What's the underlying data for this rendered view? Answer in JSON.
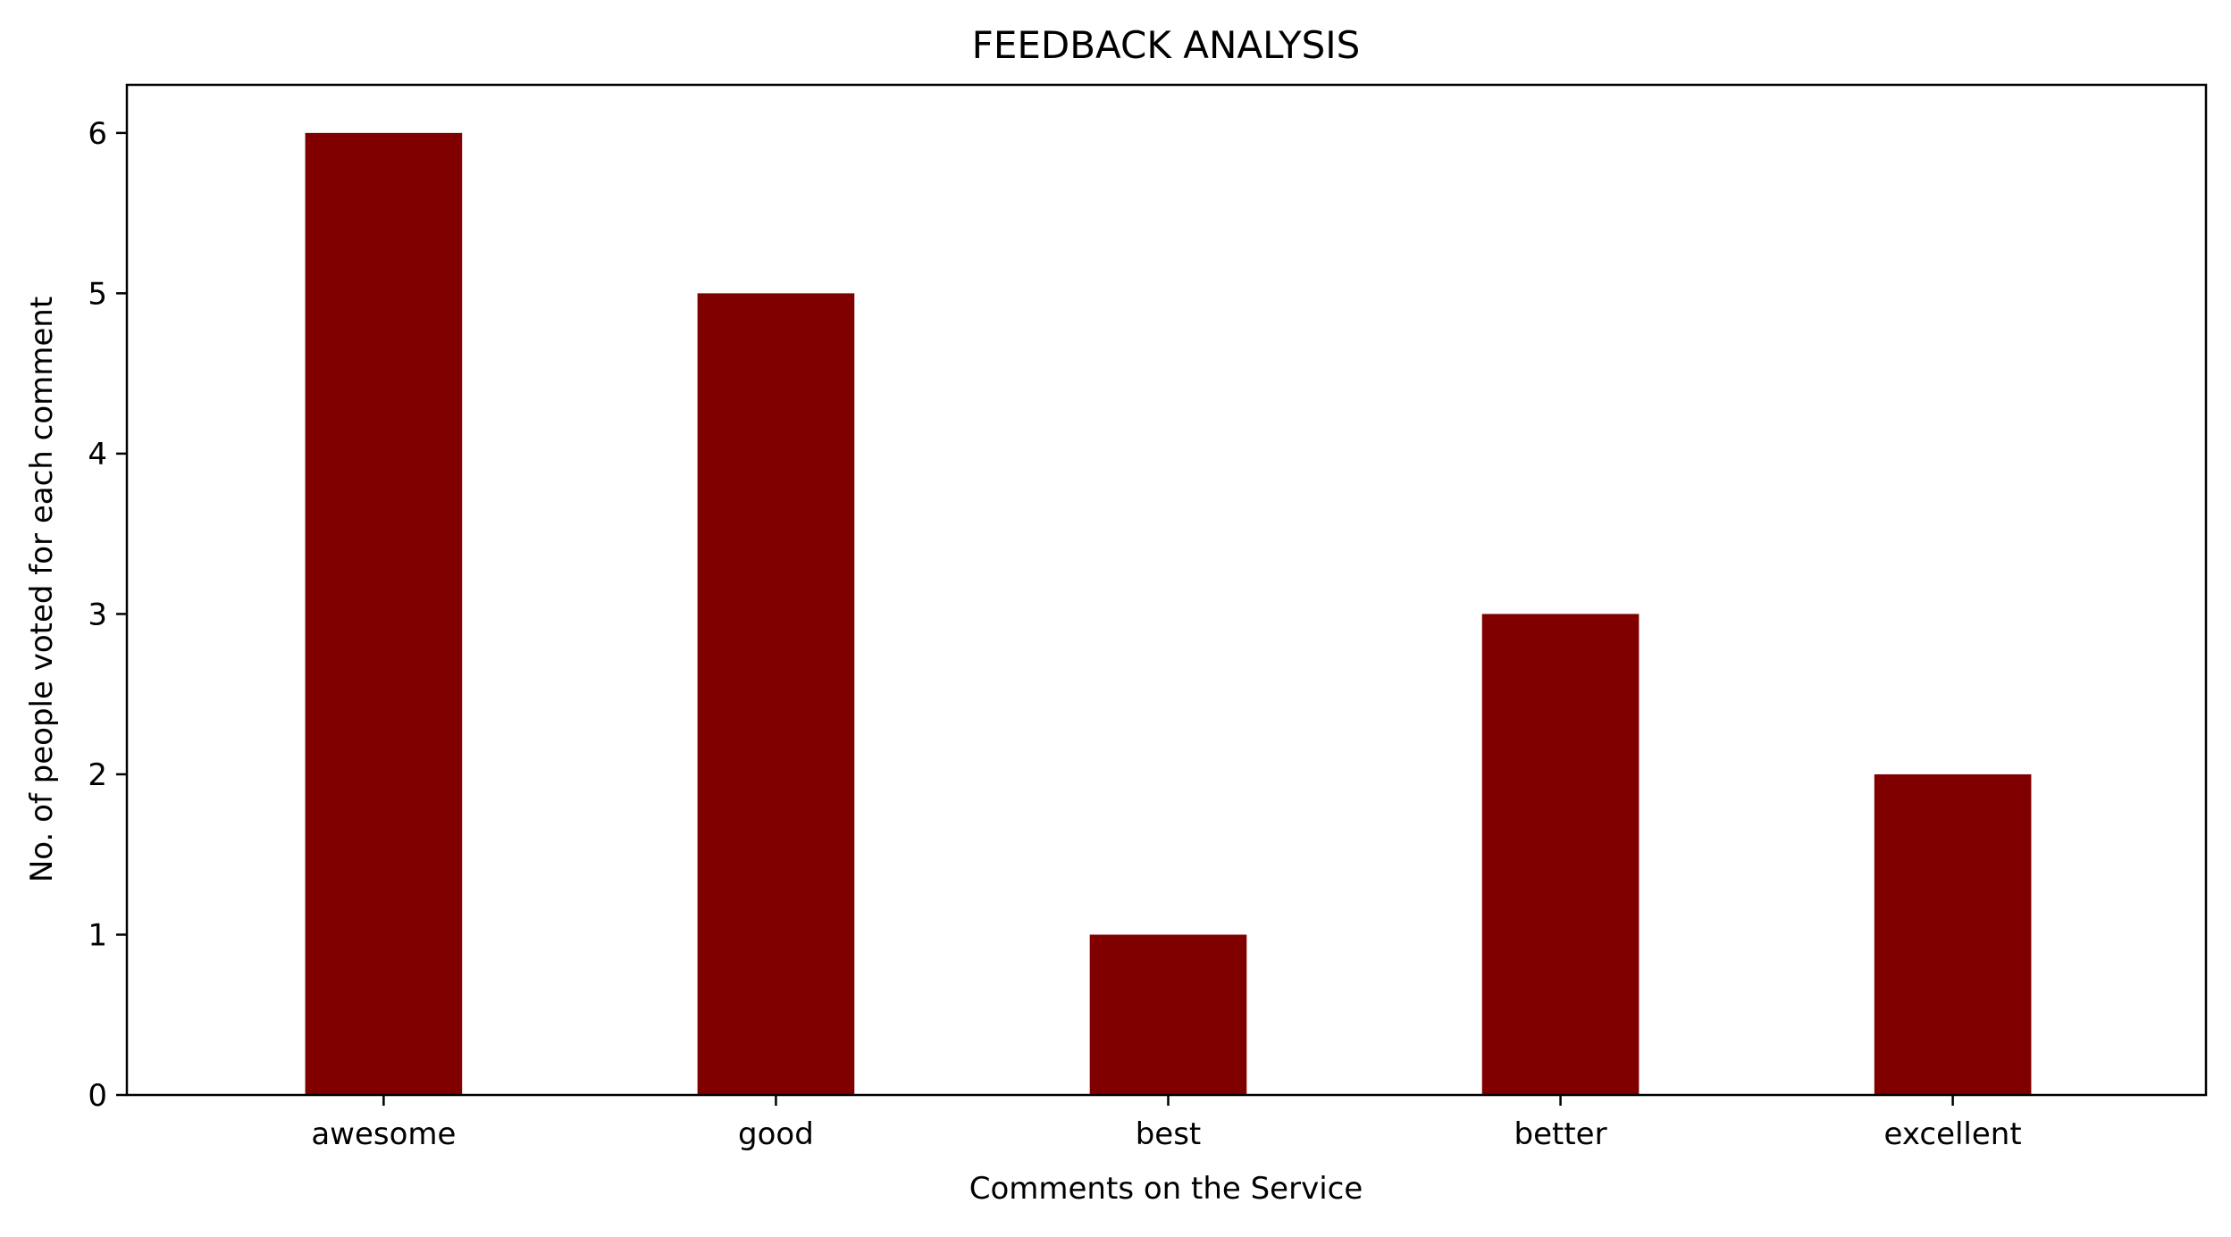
{
  "chart_data": {
    "type": "bar",
    "title": "FEEDBACK ANALYSIS",
    "xlabel": "Comments on the Service",
    "ylabel": "No. of people voted for each comment",
    "categories": [
      "awesome",
      "good",
      "best",
      "better",
      "excellent"
    ],
    "values": [
      6,
      5,
      1,
      3,
      2
    ],
    "ylim": [
      0,
      6.3
    ],
    "yticks": [
      0,
      1,
      2,
      3,
      4,
      5,
      6
    ],
    "bar_color": "#800000",
    "grid": false,
    "legend": "none"
  }
}
